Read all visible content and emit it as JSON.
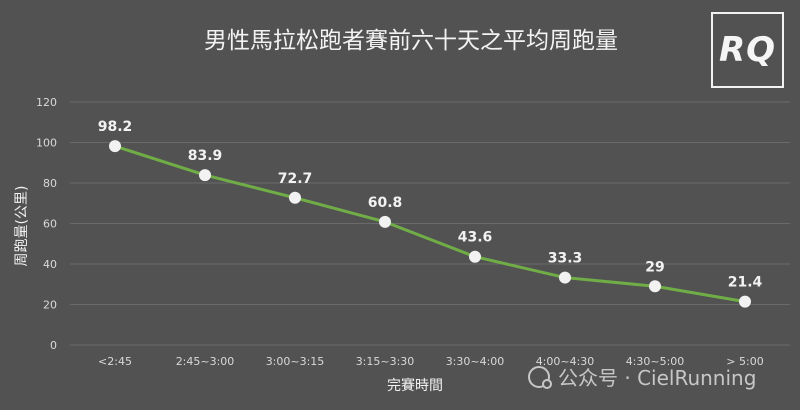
{
  "logo_text": "RQ",
  "watermark_text": "公众号 · CielRunning",
  "colors": {
    "background": "#525252",
    "line": "#70AD47",
    "marker": "#F2F2F2",
    "text": "#F2F2F2",
    "axis_text": "#D9D9D9",
    "grid": "#6A6A6A"
  },
  "chart_data": {
    "type": "line",
    "title": "男性馬拉松跑者賽前六十天之平均周跑量",
    "xlabel": "完賽時間",
    "ylabel": "周跑量(公里)",
    "categories": [
      "<2:45",
      "2:45~3:00",
      "3:00~3:15",
      "3:15~3:30",
      "3:30~4:00",
      "4:00~4:30",
      "4:30~5:00",
      "> 5:00"
    ],
    "series": [
      {
        "values": [
          98.2,
          83.9,
          72.7,
          60.8,
          43.6,
          33.3,
          29,
          21.4
        ],
        "labels": [
          "98.2",
          "83.9",
          "72.7",
          "60.8",
          "43.6",
          "33.3",
          "29",
          "21.4"
        ]
      }
    ],
    "ylim": [
      0,
      120
    ],
    "yticks": [
      0,
      20,
      40,
      60,
      80,
      100,
      120
    ],
    "ytick_labels": [
      "0",
      "20",
      "40",
      "60",
      "80",
      "100",
      "120"
    ],
    "grid": true,
    "legend": "none"
  }
}
